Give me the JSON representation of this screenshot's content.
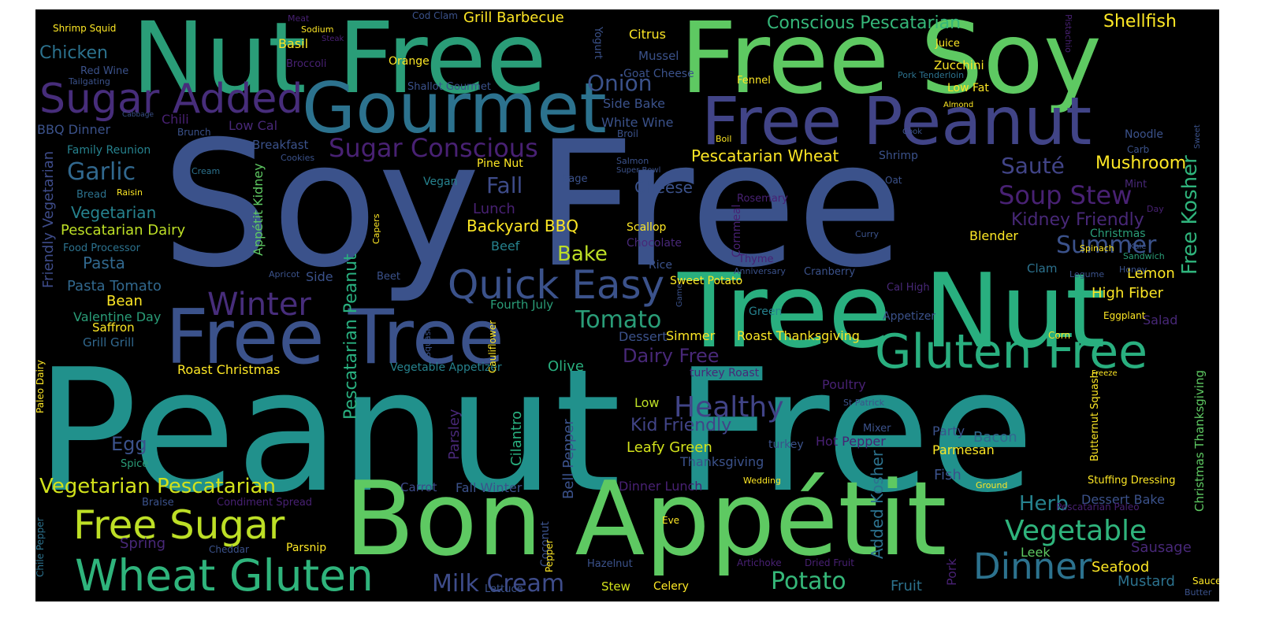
{
  "words": [
    {
      "t": "Peanut Free",
      "c": "#21918c"
    },
    {
      "t": "Soy Free",
      "c": "#3b528b"
    },
    {
      "t": "Nut Free",
      "c": "#2a9d78"
    },
    {
      "t": "Free Soy",
      "c": "#5ec962"
    },
    {
      "t": "Bon Appétit",
      "c": "#5ec962"
    },
    {
      "t": "Tree Nut",
      "c": "#29af7f"
    },
    {
      "t": "Gourmet",
      "c": "#2c728e"
    },
    {
      "t": "Free Peanut",
      "c": "#414487"
    },
    {
      "t": "Free Tree",
      "c": "#3b528b"
    },
    {
      "t": "Sugar Added",
      "c": "#472d7b"
    },
    {
      "t": "Gluten Free",
      "c": "#29af7f"
    },
    {
      "t": "Quick Easy",
      "c": "#3b528b"
    },
    {
      "t": "Wheat Gluten",
      "c": "#2fb47c"
    },
    {
      "t": "Free Sugar",
      "c": "#bddf26"
    },
    {
      "t": "Winter",
      "c": "#472d7b"
    },
    {
      "t": "Dinner",
      "c": "#2c728e"
    },
    {
      "t": "Healthy",
      "c": "#414487"
    },
    {
      "t": "Vegetable",
      "c": "#2fb47c"
    },
    {
      "t": "Sugar Conscious",
      "c": "#482173"
    },
    {
      "t": "Milk Cream",
      "c": "#3e4c8a"
    },
    {
      "t": "Potato",
      "c": "#35b779"
    },
    {
      "t": "Tomato",
      "c": "#2a9d78"
    },
    {
      "t": "Garlic",
      "c": "#31688e"
    },
    {
      "t": "Soup Stew",
      "c": "#482173"
    },
    {
      "t": "Vegetarian Pescatarian",
      "c": "#d2e21b"
    },
    {
      "t": "Onion",
      "c": "#3b528b"
    },
    {
      "t": "Herb",
      "c": "#26828e"
    },
    {
      "t": "Summer",
      "c": "#3b528b"
    },
    {
      "t": "Sauté",
      "c": "#414487"
    },
    {
      "t": "Fall",
      "c": "#3e4c8a"
    },
    {
      "t": "Bake",
      "c": "#bddf26"
    },
    {
      "t": "Egg",
      "c": "#3b528b"
    },
    {
      "t": "Shellfish",
      "c": "#fde725"
    },
    {
      "t": "Conscious Pescatarian",
      "c": "#35b779"
    },
    {
      "t": "Cheese",
      "c": "#3b528b"
    },
    {
      "t": "Dairy Free",
      "c": "#482878"
    },
    {
      "t": "Kid Friendly",
      "c": "#414487"
    },
    {
      "t": "Mushroom",
      "c": "#fde725"
    },
    {
      "t": "Kidney Friendly",
      "c": "#482878"
    },
    {
      "t": "Pescatarian Wheat",
      "c": "#fde725"
    },
    {
      "t": "Backyard BBQ",
      "c": "#fde725"
    },
    {
      "t": "Leafy Green",
      "c": "#d2e21b"
    },
    {
      "t": "Free Kosher",
      "c": "#2fb47c",
      "r": "ccw"
    },
    {
      "t": "Added Kosher",
      "c": "#2c728e",
      "r": "ccw"
    },
    {
      "t": "Pescatarian Peanut",
      "c": "#29af7f",
      "r": "ccw"
    },
    {
      "t": "Friendly Vegetarian",
      "c": "#3e4c8a",
      "r": "ccw"
    },
    {
      "t": "Seafood",
      "c": "#fde725"
    },
    {
      "t": "Chicken",
      "c": "#2c728e"
    },
    {
      "t": "Grill Barbecue",
      "c": "#fde725"
    },
    {
      "t": "Vegetarian",
      "c": "#26828e"
    },
    {
      "t": "Pescatarian Dairy",
      "c": "#bddf26"
    },
    {
      "t": "Pasta",
      "c": "#31688e"
    },
    {
      "t": "Pasta Tomato",
      "c": "#31688e"
    },
    {
      "t": "Bean",
      "c": "#fde725"
    },
    {
      "t": "Valentine Day",
      "c": "#2a9d78"
    },
    {
      "t": "Saffron",
      "c": "#fde725"
    },
    {
      "t": "Grill Grill",
      "c": "#31688e"
    },
    {
      "t": "Roast Christmas",
      "c": "#fde725"
    },
    {
      "t": "Vegetable Appetizer",
      "c": "#26828e"
    },
    {
      "t": "Olive",
      "c": "#29af7f"
    },
    {
      "t": "Fall Winter",
      "c": "#3b528b"
    },
    {
      "t": "Carrot",
      "c": "#3e4c8a"
    },
    {
      "t": "Spring",
      "c": "#482878"
    },
    {
      "t": "Parsnip",
      "c": "#fde725"
    },
    {
      "t": "Stew",
      "c": "#d2e21b"
    },
    {
      "t": "Celery",
      "c": "#fde725"
    },
    {
      "t": "Fruit",
      "c": "#2c728e"
    },
    {
      "t": "Fish",
      "c": "#3b528b"
    },
    {
      "t": "Leek",
      "c": "#5ec962"
    },
    {
      "t": "Sausage",
      "c": "#482878"
    },
    {
      "t": "Mustard",
      "c": "#2c728e"
    },
    {
      "t": "Dessert Bake",
      "c": "#3b528b"
    },
    {
      "t": "Parmesan",
      "c": "#fde725"
    },
    {
      "t": "Bacon",
      "c": "#31688e"
    },
    {
      "t": "Party",
      "c": "#3b528b"
    },
    {
      "t": "Lemon",
      "c": "#fde725"
    },
    {
      "t": "High Fiber",
      "c": "#fde725"
    },
    {
      "t": "Salad",
      "c": "#482878"
    },
    {
      "t": "Blender",
      "c": "#fde725"
    },
    {
      "t": "Clam",
      "c": "#2c728e"
    },
    {
      "t": "Christmas",
      "c": "#2a9d78"
    },
    {
      "t": "Zucchini",
      "c": "#fde725"
    },
    {
      "t": "Low Fat",
      "c": "#fde725"
    },
    {
      "t": "Citrus",
      "c": "#fde725"
    },
    {
      "t": "Basil",
      "c": "#fde725"
    },
    {
      "t": "Mussel",
      "c": "#3b528b"
    },
    {
      "t": "Goat Cheese",
      "c": "#3b528b"
    },
    {
      "t": "White Wine",
      "c": "#3b528b"
    },
    {
      "t": "Side Bake",
      "c": "#3b528b"
    },
    {
      "t": "Low Cal",
      "c": "#482878"
    },
    {
      "t": "Breakfast",
      "c": "#3b528b"
    },
    {
      "t": "Side",
      "c": "#3b528b"
    },
    {
      "t": "Beef",
      "c": "#26828e"
    },
    {
      "t": "Lunch",
      "c": "#482173"
    },
    {
      "t": "Pine Nut",
      "c": "#fde725"
    },
    {
      "t": "Vegan",
      "c": "#26828e"
    },
    {
      "t": "Fourth July",
      "c": "#2a9d78"
    },
    {
      "t": "Simmer",
      "c": "#fde725"
    },
    {
      "t": "Roast Thanksgiving",
      "c": "#fde725"
    },
    {
      "t": "Dessert",
      "c": "#3b528b"
    },
    {
      "t": "Low",
      "c": "#bddf26"
    },
    {
      "t": "Thanksgiving",
      "c": "#3b528b"
    },
    {
      "t": "turkey Roast",
      "c": "#482878"
    },
    {
      "t": "Poultry",
      "c": "#482173"
    },
    {
      "t": "Hot Pepper",
      "c": "#482173"
    },
    {
      "t": "Dinner Lunch",
      "c": "#482173"
    },
    {
      "t": "Mixer",
      "c": "#3b528b"
    },
    {
      "t": "turkey",
      "c": "#3b528b"
    },
    {
      "t": "Scallop",
      "c": "#fde725"
    },
    {
      "t": "Chocolate",
      "c": "#482878"
    },
    {
      "t": "Rice",
      "c": "#3b528b"
    },
    {
      "t": "Sweet Potato",
      "c": "#fde725"
    },
    {
      "t": "Green",
      "c": "#26828e"
    },
    {
      "t": "Cal High",
      "c": "#482878"
    },
    {
      "t": "Appetizer",
      "c": "#3b528b"
    },
    {
      "t": "Corn",
      "c": "#fde725"
    },
    {
      "t": "Eggplant",
      "c": "#fde725"
    },
    {
      "t": "Honey",
      "c": "#3b528b"
    },
    {
      "t": "Spinach",
      "c": "#fde725"
    },
    {
      "t": "Sandwich",
      "c": "#2a9d78"
    },
    {
      "t": "Red Wine",
      "c": "#3b528b"
    },
    {
      "t": "Family Reunion",
      "c": "#26828e"
    },
    {
      "t": "BBQ Dinner",
      "c": "#3b528b"
    },
    {
      "t": "Food Processor",
      "c": "#2c728e"
    },
    {
      "t": "Chili",
      "c": "#482173"
    },
    {
      "t": "Shrimp Squid",
      "c": "#fde725"
    },
    {
      "t": "Orange",
      "c": "#fde725"
    },
    {
      "t": "Shallot Gourmet",
      "c": "#3b528b"
    },
    {
      "t": "Broccoli",
      "c": "#482173"
    },
    {
      "t": "Cod Clam",
      "c": "#3b528b"
    },
    {
      "t": "Sodium",
      "c": "#fde725"
    },
    {
      "t": "Meat",
      "c": "#482173"
    },
    {
      "t": "Tailgating",
      "c": "#3b528b"
    },
    {
      "t": "Cabbage",
      "c": "#3b528b"
    },
    {
      "t": "Brunch",
      "c": "#3b528b"
    },
    {
      "t": "Cream",
      "c": "#2c728e"
    },
    {
      "t": "Cookies",
      "c": "#3b528b"
    },
    {
      "t": "Bread",
      "c": "#2c728e"
    },
    {
      "t": "Raisin",
      "c": "#fde725"
    },
    {
      "t": "Sage",
      "c": "#3b528b"
    },
    {
      "t": "Salmon",
      "c": "#3b528b"
    },
    {
      "t": "Super Bowl",
      "c": "#3b528b"
    },
    {
      "t": "Rosemary",
      "c": "#482173"
    },
    {
      "t": "Broil",
      "c": "#3b528b"
    },
    {
      "t": "Fennel",
      "c": "#fde725"
    },
    {
      "t": "Juice",
      "c": "#fde725"
    },
    {
      "t": "Pork Tenderloin",
      "c": "#2c728e"
    },
    {
      "t": "Almond",
      "c": "#fde725"
    },
    {
      "t": "Boil",
      "c": "#fde725"
    },
    {
      "t": "Cook",
      "c": "#3b528b"
    },
    {
      "t": "Noodle",
      "c": "#3b528b"
    },
    {
      "t": "Carb",
      "c": "#3b528b"
    },
    {
      "t": "Shrimp",
      "c": "#3b528b"
    },
    {
      "t": "Oat",
      "c": "#3b528b"
    },
    {
      "t": "Mint",
      "c": "#482878"
    },
    {
      "t": "Day",
      "c": "#482173"
    },
    {
      "t": "Kale",
      "c": "#3b528b"
    },
    {
      "t": "Curry",
      "c": "#3b528b"
    },
    {
      "t": "Thyme",
      "c": "#482173"
    },
    {
      "t": "Anniversary",
      "c": "#3b528b"
    },
    {
      "t": "Cranberry",
      "c": "#3b528b"
    },
    {
      "t": "Legume",
      "c": "#3b528b"
    },
    {
      "t": "Apricot",
      "c": "#3b528b"
    },
    {
      "t": "Beet",
      "c": "#3b528b"
    },
    {
      "t": "Spice",
      "c": "#2a9d78"
    },
    {
      "t": "Braise",
      "c": "#3b528b"
    },
    {
      "t": "Condiment Spread",
      "c": "#482173"
    },
    {
      "t": "Cheddar",
      "c": "#3b528b"
    },
    {
      "t": "Hazelnut",
      "c": "#3b528b"
    },
    {
      "t": "Lettuce",
      "c": "#3b528b"
    },
    {
      "t": "Eve",
      "c": "#fde725"
    },
    {
      "t": "Wedding",
      "c": "#fde725"
    },
    {
      "t": "Artichoke",
      "c": "#482173"
    },
    {
      "t": "Dried Fruit",
      "c": "#482173"
    },
    {
      "t": "Freeze",
      "c": "#fde725"
    },
    {
      "t": "St Patrick",
      "c": "#3b528b"
    },
    {
      "t": "Ground",
      "c": "#fde725"
    },
    {
      "t": "Stuffing Dressing",
      "c": "#fde725"
    },
    {
      "t": "Pescatarian Paleo",
      "c": "#482173"
    },
    {
      "t": "Sauce",
      "c": "#fde725"
    },
    {
      "t": "Butter",
      "c": "#3b528b"
    },
    {
      "t": "Yogurt",
      "c": "#3b528b",
      "r": "cw"
    },
    {
      "t": "Steak",
      "c": "#482173"
    },
    {
      "t": "Pistachio",
      "c": "#482173",
      "r": "cw"
    },
    {
      "t": "Appétit Kidney",
      "c": "#5ec962",
      "r": "ccw"
    },
    {
      "t": "Capers",
      "c": "#fde725",
      "r": "ccw"
    },
    {
      "t": "Parsley",
      "c": "#482878",
      "r": "ccw"
    },
    {
      "t": "Bell Pepper",
      "c": "#3b528b",
      "r": "ccw"
    },
    {
      "t": "Cilantro",
      "c": "#29af7f",
      "r": "ccw"
    },
    {
      "t": "Coconut",
      "c": "#3b528b",
      "r": "ccw"
    },
    {
      "t": "Pepper",
      "c": "#fde725",
      "r": "ccw"
    },
    {
      "t": "Cauliflower",
      "c": "#fde725",
      "r": "ccw"
    },
    {
      "t": "Squash",
      "c": "#3b528b",
      "r": "ccw"
    },
    {
      "t": "Cornmeal",
      "c": "#482173",
      "r": "ccw"
    },
    {
      "t": "Game",
      "c": "#3b528b",
      "r": "ccw"
    },
    {
      "t": "Pork",
      "c": "#482173",
      "r": "ccw"
    },
    {
      "t": "Paleo Dairy",
      "c": "#fde725",
      "r": "ccw"
    },
    {
      "t": "Chile Pepper",
      "c": "#2c728e",
      "r": "ccw"
    },
    {
      "t": "Butternut Squash",
      "c": "#fde725",
      "r": "ccw"
    },
    {
      "t": "Christmas Thanksgiving",
      "c": "#5ec962",
      "r": "ccw"
    },
    {
      "t": "Sweet",
      "c": "#3b528b",
      "r": "ccw"
    }
  ]
}
